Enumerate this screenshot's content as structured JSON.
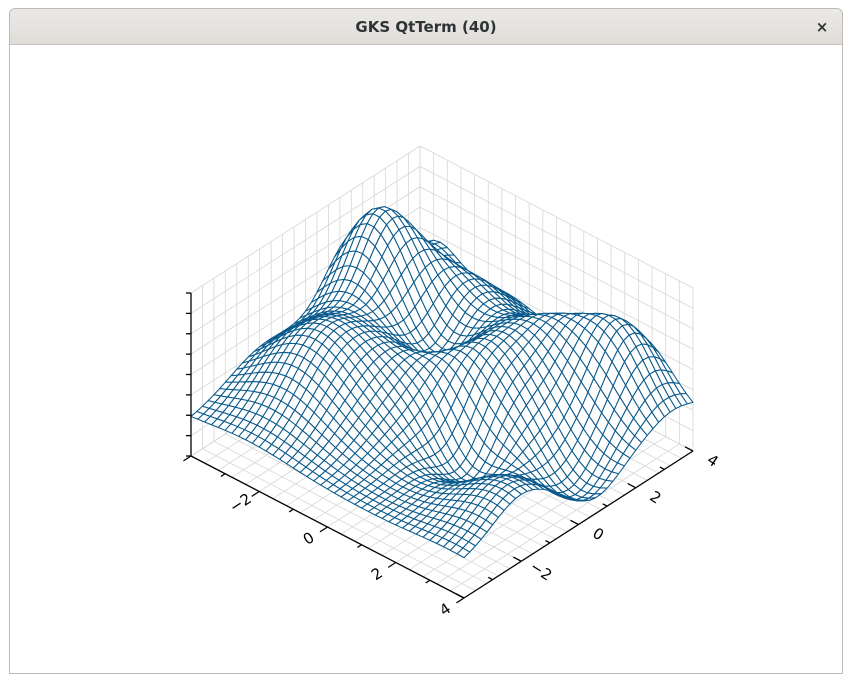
{
  "window": {
    "title": "GKS QtTerm (40)",
    "close_label": "×"
  },
  "chart_data": {
    "type": "surface",
    "title": "",
    "xlabel": "",
    "ylabel": "",
    "zlabel": "",
    "x_range": [
      -4,
      4
    ],
    "y_range": [
      -4,
      4
    ],
    "x_ticks": [
      -4,
      -2,
      0,
      2,
      4
    ],
    "x_tick_labels": [
      "",
      "−2",
      "0",
      "2",
      "4"
    ],
    "y_ticks": [
      -4,
      -2,
      0,
      2,
      4
    ],
    "y_tick_labels": [
      "",
      "−2",
      "0",
      "2",
      "4"
    ],
    "z_range": [
      0,
      1
    ],
    "grid": true,
    "grid_lines": 40,
    "line_color": "#0a5a8c",
    "axis_color": "#000000",
    "pane_grid_color": "#d6d6d6"
  }
}
